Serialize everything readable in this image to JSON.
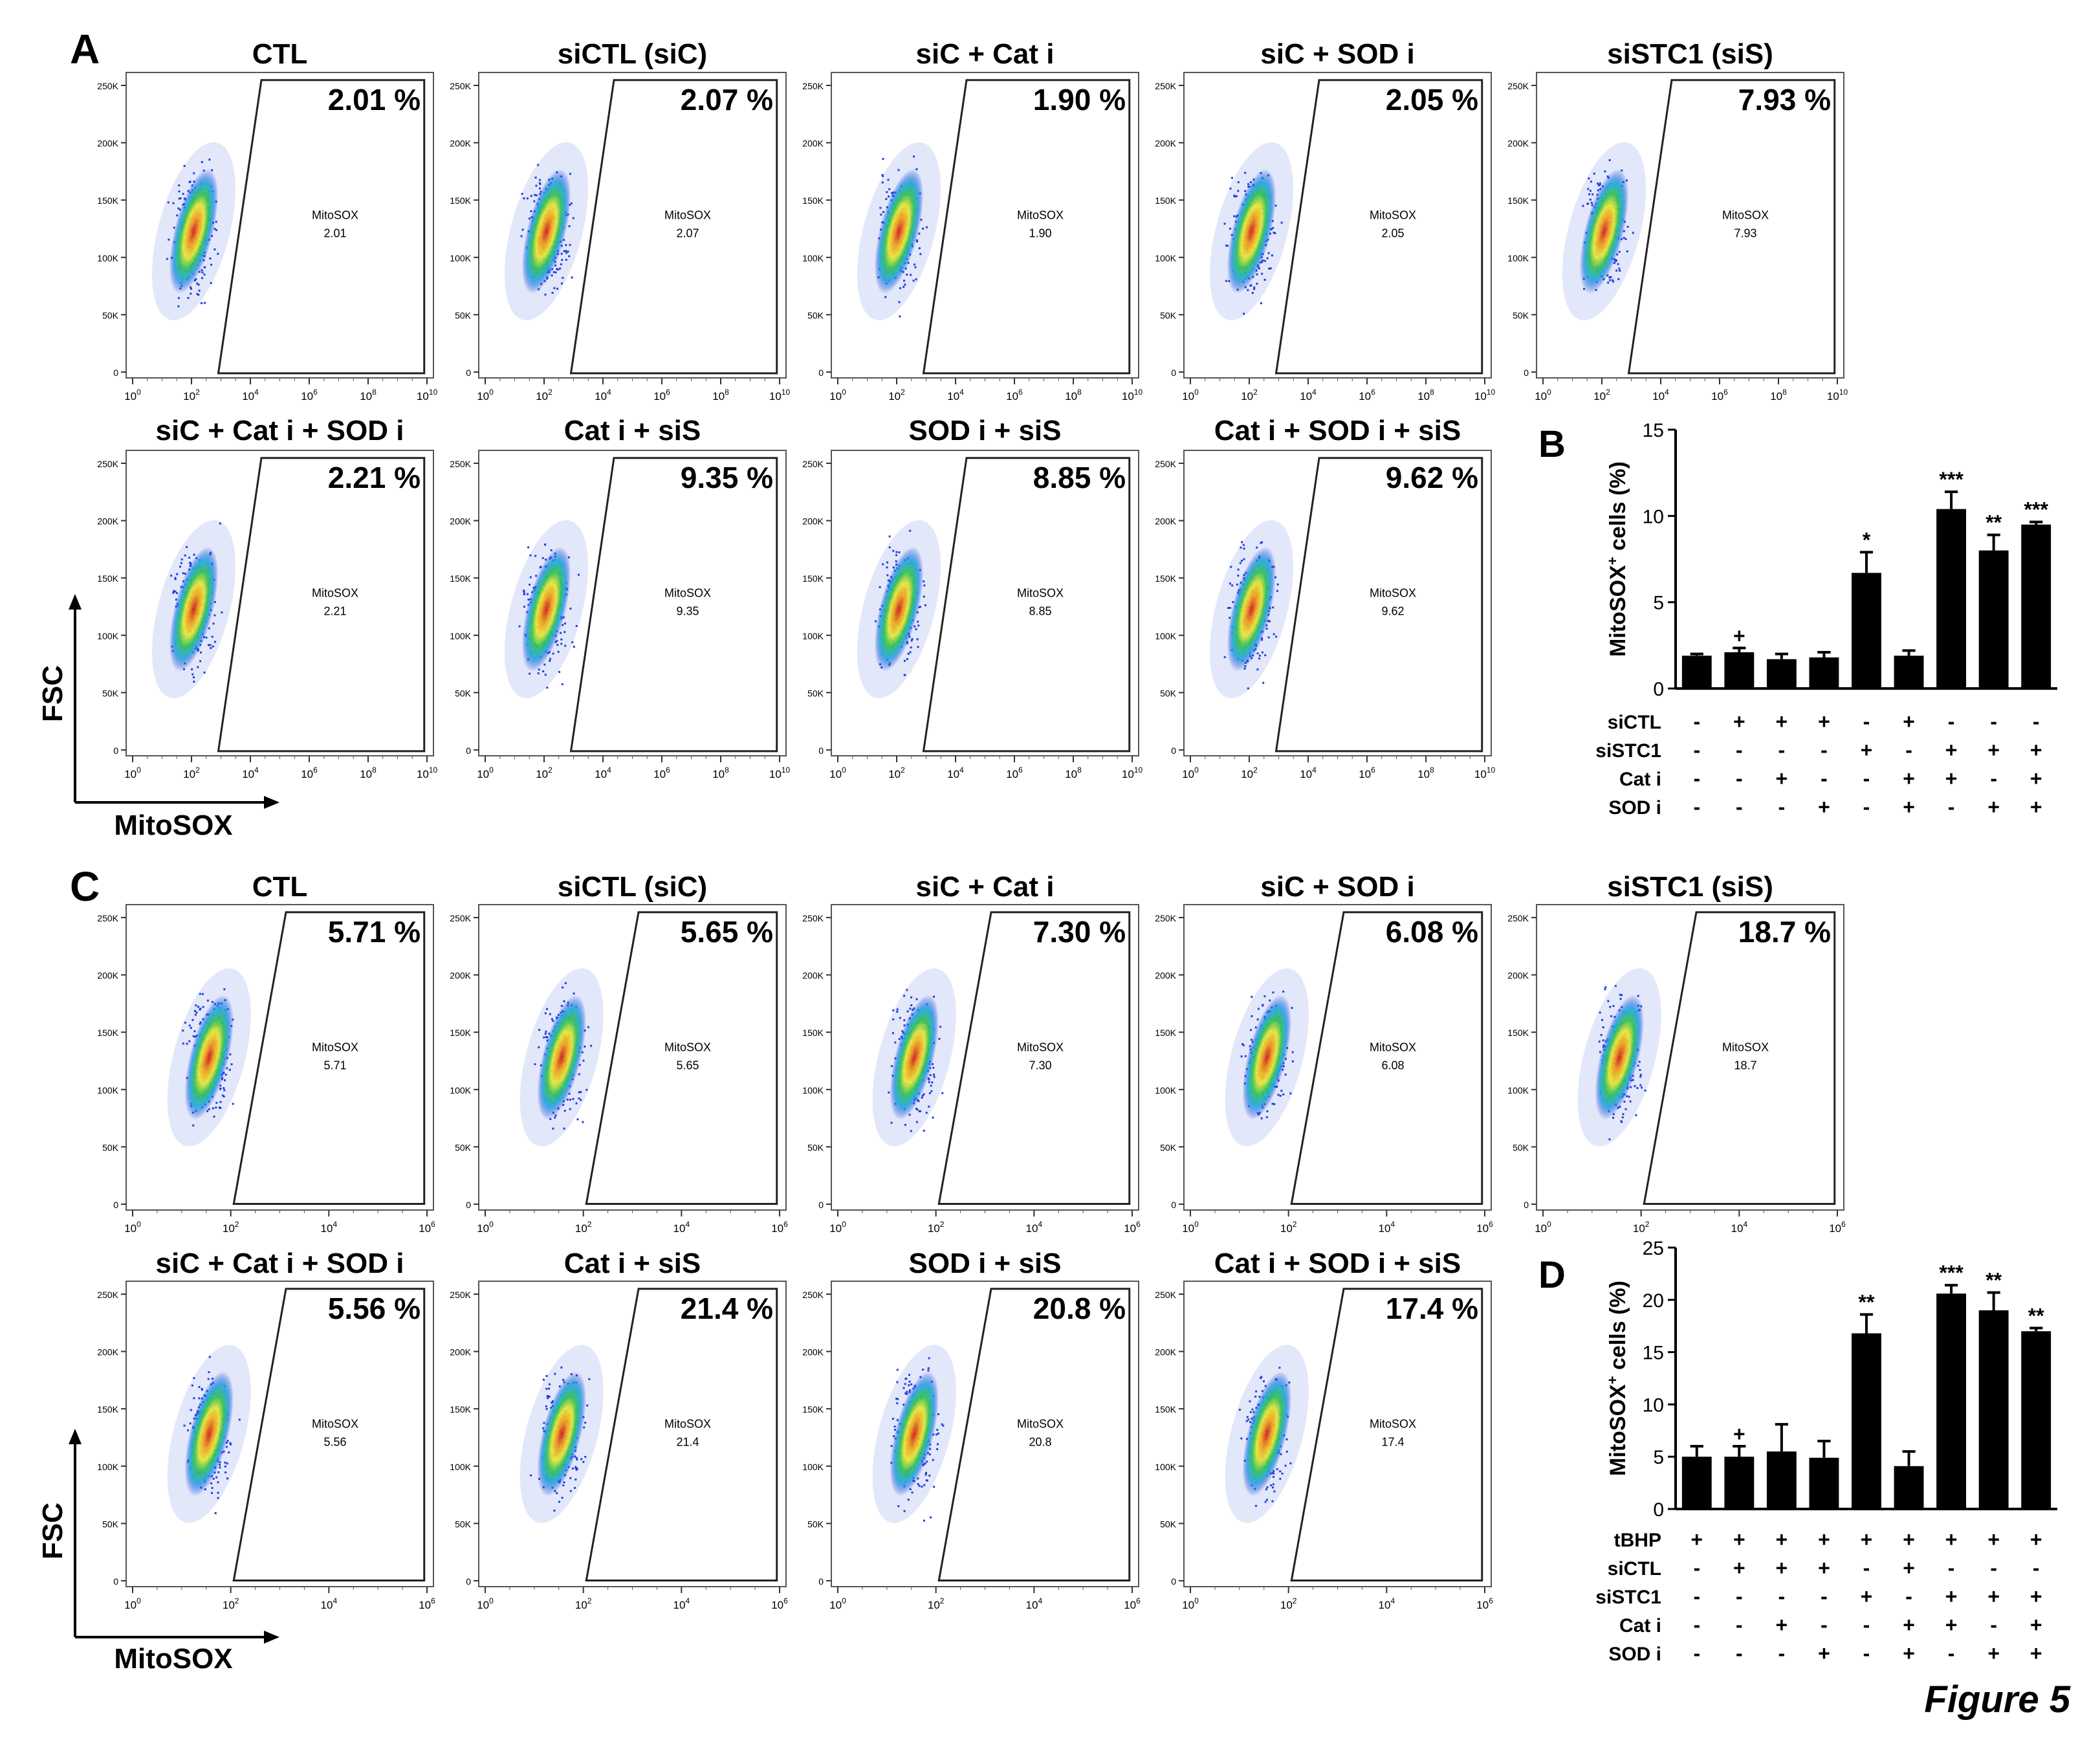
{
  "figure": {
    "caption": "Figure 5",
    "panel_letters": {
      "A": "A",
      "B": "B",
      "C": "C",
      "D": "D"
    },
    "axis_names": {
      "y": "FSC",
      "x": "MitoSOX"
    },
    "flow_axes": {
      "y_ticks": [
        "250K",
        "200K",
        "150K",
        "100K",
        "50K",
        "0"
      ],
      "x_ticks_A": [
        "10",
        "10",
        "10",
        "10",
        "10",
        "10"
      ],
      "x_exponents_A": [
        "0",
        "2",
        "4",
        "6",
        "8",
        "10"
      ],
      "x_ticks_C": [
        "10",
        "10",
        "10",
        "10"
      ],
      "x_exponents_C": [
        "0",
        "2",
        "4",
        "6"
      ]
    },
    "gate_label": "MitoSOX"
  },
  "panel_A": {
    "plots": [
      {
        "title": "CTL",
        "percent": "2.01 %",
        "value": "2.01"
      },
      {
        "title": "siCTL (siC)",
        "percent": "2.07 %",
        "value": "2.07"
      },
      {
        "title": "siC + Cat i",
        "percent": "1.90 %",
        "value": "1.90"
      },
      {
        "title": "siC + SOD i",
        "percent": "2.05 %",
        "value": "2.05"
      },
      {
        "title": "siSTC1 (siS)",
        "percent": "7.93 %",
        "value": "7.93"
      },
      {
        "title": "siC + Cat i + SOD i",
        "percent": "2.21 %",
        "value": "2.21"
      },
      {
        "title": "Cat i + siS",
        "percent": "9.35 %",
        "value": "9.35"
      },
      {
        "title": "SOD i + siS",
        "percent": "8.85 %",
        "value": "8.85"
      },
      {
        "title": "Cat i + SOD i + siS",
        "percent": "9.62 %",
        "value": "9.62"
      }
    ]
  },
  "panel_C": {
    "plots": [
      {
        "title": "CTL",
        "percent": "5.71 %",
        "value": "5.71"
      },
      {
        "title": "siCTL (siC)",
        "percent": "5.65 %",
        "value": "5.65"
      },
      {
        "title": "siC + Cat i",
        "percent": "7.30 %",
        "value": "7.30"
      },
      {
        "title": "siC + SOD i",
        "percent": "6.08 %",
        "value": "6.08"
      },
      {
        "title": "siSTC1 (siS)",
        "percent": "18.7 %",
        "value": "18.7"
      },
      {
        "title": "siC + Cat i + SOD i",
        "percent": "5.56 %",
        "value": "5.56"
      },
      {
        "title": "Cat i + siS",
        "percent": "21.4 %",
        "value": "21.4"
      },
      {
        "title": "SOD i + siS",
        "percent": "20.8 %",
        "value": "20.8"
      },
      {
        "title": "Cat i + SOD i + siS",
        "percent": "17.4 %",
        "value": "17.4"
      }
    ]
  },
  "chart_data": [
    {
      "panel": "B",
      "type": "bar",
      "ylabel": "MitoSOX+ cells (%)",
      "ylabel_main": "MitoSOX",
      "ylabel_sup": "+",
      "ylabel_tail": " cells (%)",
      "ylim": [
        0,
        15
      ],
      "yticks": [
        0,
        5,
        10,
        15
      ],
      "ytick_labels": [
        "0",
        "5",
        "10",
        "15"
      ],
      "values": [
        1.9,
        2.1,
        1.7,
        1.8,
        6.7,
        1.9,
        10.4,
        8.0,
        9.5
      ],
      "errors": [
        0.1,
        0.25,
        0.3,
        0.3,
        1.2,
        0.3,
        1.0,
        0.9,
        0.15
      ],
      "annotations": [
        "",
        "+",
        "",
        "",
        "*",
        "",
        "***",
        "**",
        "***"
      ],
      "conditions": [
        {
          "label": "siCTL",
          "signs": [
            "-",
            "+",
            "+",
            "+",
            "-",
            "+",
            "-",
            "-",
            "-"
          ]
        },
        {
          "label": "siSTC1",
          "signs": [
            "-",
            "-",
            "-",
            "-",
            "+",
            "-",
            "+",
            "+",
            "+"
          ]
        },
        {
          "label": "Cat i",
          "signs": [
            "-",
            "-",
            "+",
            "-",
            "-",
            "+",
            "+",
            "-",
            "+"
          ]
        },
        {
          "label": "SOD i",
          "signs": [
            "-",
            "-",
            "-",
            "+",
            "-",
            "+",
            "-",
            "+",
            "+"
          ]
        }
      ]
    },
    {
      "panel": "D",
      "type": "bar",
      "ylabel": "MitoSOX+ cells (%)",
      "ylabel_main": "MitoSOX",
      "ylabel_sup": "+",
      "ylabel_tail": " cells (%)",
      "ylim": [
        0,
        25
      ],
      "yticks": [
        0,
        5,
        10,
        15,
        20,
        25
      ],
      "ytick_labels": [
        "0",
        "5",
        "10",
        "15",
        "20",
        "25"
      ],
      "values": [
        5.0,
        5.0,
        5.5,
        4.9,
        16.8,
        4.1,
        20.6,
        19.0,
        17.0
      ],
      "errors": [
        1.0,
        1.0,
        2.6,
        1.6,
        1.8,
        1.4,
        0.8,
        1.7,
        0.3
      ],
      "annotations": [
        "",
        "+",
        "",
        "",
        "**",
        "",
        "***",
        "**",
        "**"
      ],
      "conditions": [
        {
          "label": "tBHP",
          "signs": [
            "+",
            "+",
            "+",
            "+",
            "+",
            "+",
            "+",
            "+",
            "+"
          ]
        },
        {
          "label": "siCTL",
          "signs": [
            "-",
            "+",
            "+",
            "+",
            "-",
            "+",
            "-",
            "-",
            "-"
          ]
        },
        {
          "label": "siSTC1",
          "signs": [
            "-",
            "-",
            "-",
            "-",
            "+",
            "-",
            "+",
            "+",
            "+"
          ]
        },
        {
          "label": "Cat i",
          "signs": [
            "-",
            "-",
            "+",
            "-",
            "-",
            "+",
            "+",
            "-",
            "+"
          ]
        },
        {
          "label": "SOD i",
          "signs": [
            "-",
            "-",
            "-",
            "+",
            "-",
            "+",
            "-",
            "+",
            "+"
          ]
        }
      ]
    }
  ]
}
